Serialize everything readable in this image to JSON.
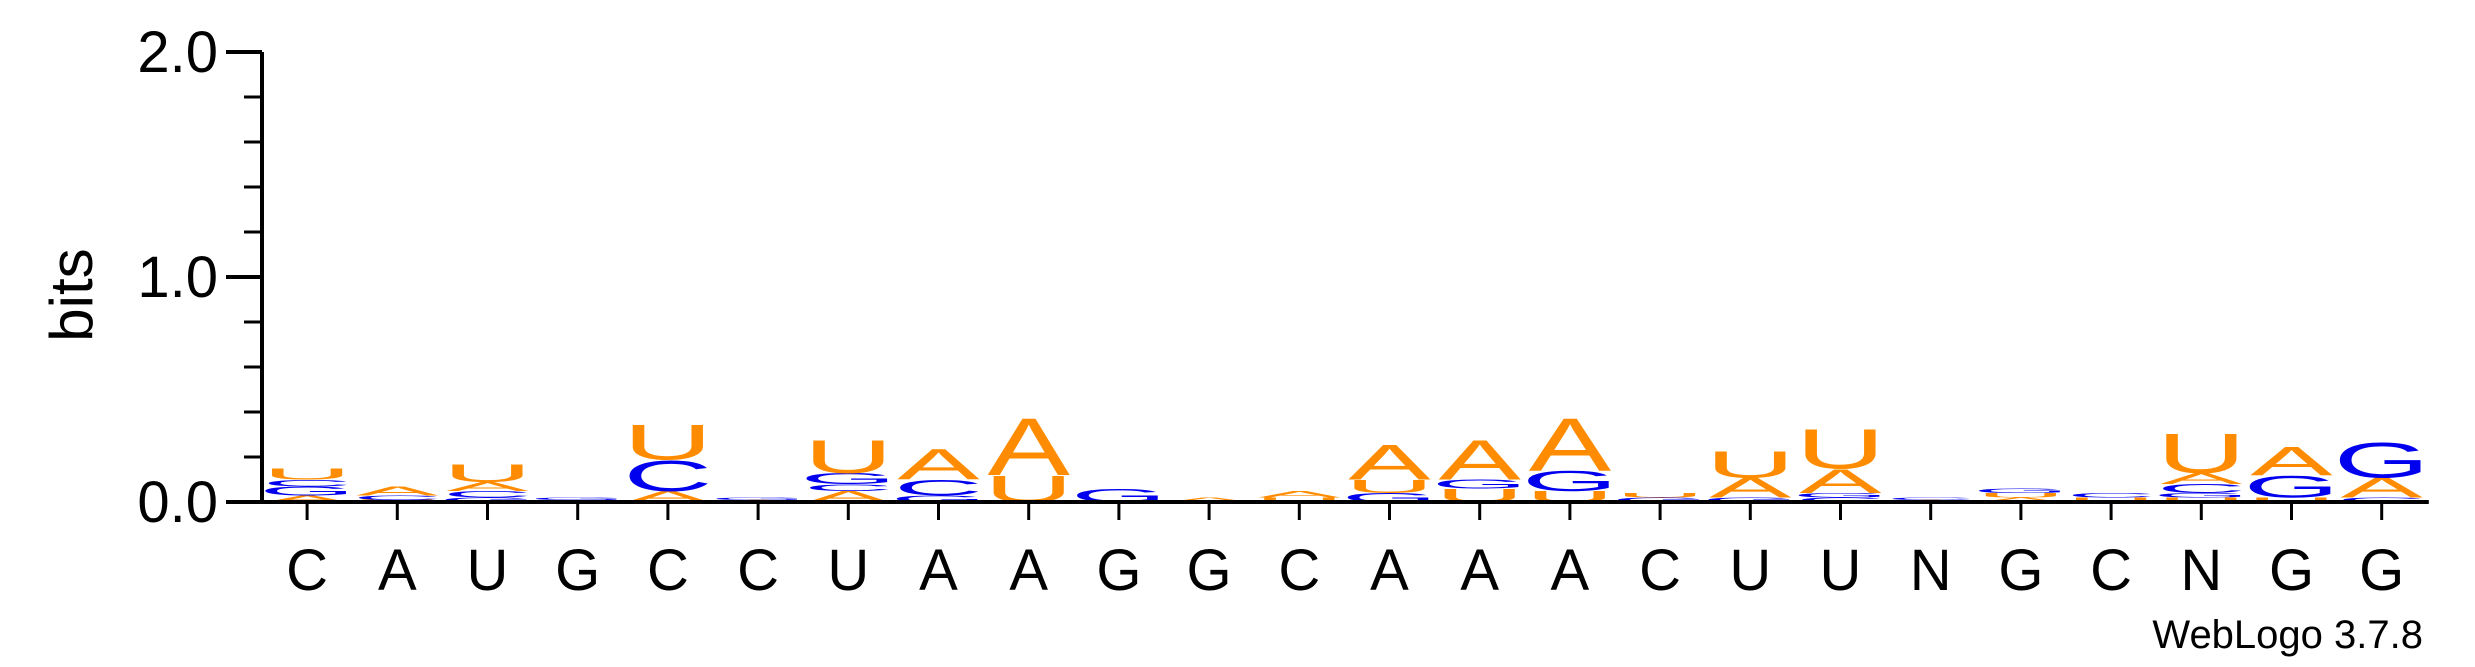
{
  "chart_data": {
    "type": "sequence-logo",
    "ylabel": "bits",
    "ylim": [
      0,
      2.0
    ],
    "yticks": [
      "0.0",
      "1.0",
      "2.0"
    ],
    "positions": [
      "C",
      "A",
      "U",
      "G",
      "C",
      "C",
      "U",
      "A",
      "A",
      "G",
      "G",
      "C",
      "A",
      "A",
      "A",
      "C",
      "U",
      "U",
      "N",
      "G",
      "C",
      "N",
      "G",
      "G"
    ],
    "colors": {
      "A": "#ff8c00",
      "U": "#ff8c00",
      "C": "#0000ee",
      "G": "#0000ee"
    },
    "stacks": [
      [
        {
          "l": "A",
          "h": 0.03
        },
        {
          "l": "G",
          "h": 0.04
        },
        {
          "l": "C",
          "h": 0.03
        },
        {
          "l": "U",
          "h": 0.05
        }
      ],
      [
        {
          "l": "U",
          "h": 0.01
        },
        {
          "l": "C",
          "h": 0.02
        },
        {
          "l": "A",
          "h": 0.04
        }
      ],
      [
        {
          "l": "G",
          "h": 0.02
        },
        {
          "l": "C",
          "h": 0.03
        },
        {
          "l": "A",
          "h": 0.04
        },
        {
          "l": "U",
          "h": 0.08
        }
      ],
      [
        {
          "l": "C",
          "h": 0.01
        },
        {
          "l": "G",
          "h": 0.01
        }
      ],
      [
        {
          "l": "A",
          "h": 0.05
        },
        {
          "l": "C",
          "h": 0.14
        },
        {
          "l": "U",
          "h": 0.16
        }
      ],
      [
        {
          "l": "A",
          "h": 0.01
        },
        {
          "l": "G",
          "h": 0.01
        }
      ],
      [
        {
          "l": "A",
          "h": 0.05
        },
        {
          "l": "C",
          "h": 0.03
        },
        {
          "l": "G",
          "h": 0.05
        },
        {
          "l": "U",
          "h": 0.15
        }
      ],
      [
        {
          "l": "G",
          "h": 0.03
        },
        {
          "l": "C",
          "h": 0.07
        },
        {
          "l": "A",
          "h": 0.14
        }
      ],
      [
        {
          "l": "U",
          "h": 0.12
        },
        {
          "l": "A",
          "h": 0.26
        }
      ],
      [
        {
          "l": "G",
          "h": 0.06
        }
      ],
      [
        {
          "l": "A",
          "h": 0.02
        }
      ],
      [
        {
          "l": "U",
          "h": 0.02
        },
        {
          "l": "A",
          "h": 0.03
        }
      ],
      [
        {
          "l": "G",
          "h": 0.04
        },
        {
          "l": "U",
          "h": 0.06
        },
        {
          "l": "A",
          "h": 0.16
        }
      ],
      [
        {
          "l": "U",
          "h": 0.06
        },
        {
          "l": "G",
          "h": 0.04
        },
        {
          "l": "A",
          "h": 0.18
        }
      ],
      [
        {
          "l": "U",
          "h": 0.05
        },
        {
          "l": "G",
          "h": 0.09
        },
        {
          "l": "A",
          "h": 0.24
        }
      ],
      [
        {
          "l": "G",
          "h": 0.02
        },
        {
          "l": "U",
          "h": 0.02
        }
      ],
      [
        {
          "l": "G",
          "h": 0.02
        },
        {
          "l": "A",
          "h": 0.09
        },
        {
          "l": "U",
          "h": 0.12
        }
      ],
      [
        {
          "l": "C",
          "h": 0.02
        },
        {
          "l": "G",
          "h": 0.02
        },
        {
          "l": "A",
          "h": 0.11
        },
        {
          "l": "U",
          "h": 0.18
        }
      ],
      [
        {
          "l": "A",
          "h": 0.01
        },
        {
          "l": "C",
          "h": 0.01
        }
      ],
      [
        {
          "l": "A",
          "h": 0.02
        },
        {
          "l": "U",
          "h": 0.02
        },
        {
          "l": "G",
          "h": 0.02
        }
      ],
      [
        {
          "l": "U",
          "h": 0.02
        },
        {
          "l": "C",
          "h": 0.02
        }
      ],
      [
        {
          "l": "U",
          "h": 0.02
        },
        {
          "l": "G",
          "h": 0.02
        },
        {
          "l": "C",
          "h": 0.04
        },
        {
          "l": "A",
          "h": 0.05
        },
        {
          "l": "U",
          "h": 0.18
        }
      ],
      [
        {
          "l": "U",
          "h": 0.02
        },
        {
          "l": "G",
          "h": 0.1
        },
        {
          "l": "A",
          "h": 0.13
        }
      ],
      [
        {
          "l": "C",
          "h": 0.02
        },
        {
          "l": "A",
          "h": 0.09
        },
        {
          "l": "G",
          "h": 0.16
        }
      ]
    ]
  },
  "footer": {
    "version": "WebLogo 3.7.8"
  }
}
